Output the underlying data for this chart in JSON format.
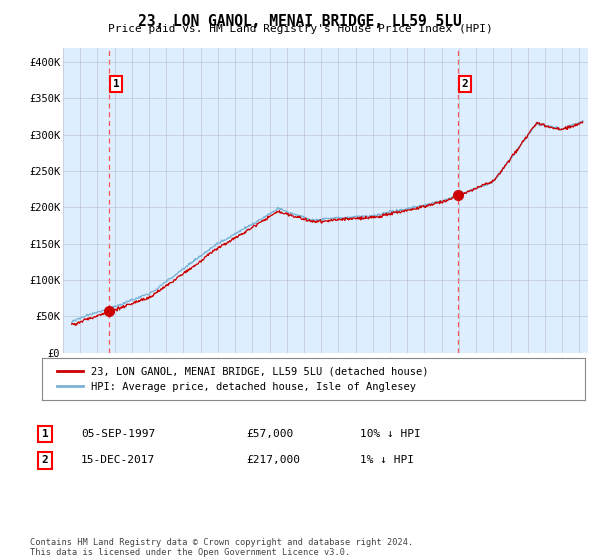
{
  "title": "23, LON GANOL, MENAI BRIDGE, LL59 5LU",
  "subtitle": "Price paid vs. HM Land Registry's House Price Index (HPI)",
  "ylim": [
    0,
    420000
  ],
  "yticks": [
    0,
    50000,
    100000,
    150000,
    200000,
    250000,
    300000,
    350000,
    400000
  ],
  "ytick_labels": [
    "£0",
    "£50K",
    "£100K",
    "£150K",
    "£200K",
    "£250K",
    "£300K",
    "£350K",
    "£400K"
  ],
  "xlim_start": 1995.3,
  "xlim_end": 2025.5,
  "xticks": [
    1995,
    1996,
    1997,
    1998,
    1999,
    2000,
    2001,
    2002,
    2003,
    2004,
    2005,
    2006,
    2007,
    2008,
    2009,
    2010,
    2011,
    2012,
    2013,
    2014,
    2015,
    2016,
    2017,
    2018,
    2019,
    2020,
    2021,
    2022,
    2023,
    2024,
    2025
  ],
  "hpi_color": "#7ab3d4",
  "price_color": "#cc0000",
  "vline_color": "#ff5555",
  "marker_color": "#cc0000",
  "bg_plot_color": "#ddeeff",
  "sale1_x": 1997.68,
  "sale1_y": 57000,
  "sale2_x": 2017.96,
  "sale2_y": 217000,
  "legend_line1": "23, LON GANOL, MENAI BRIDGE, LL59 5LU (detached house)",
  "legend_line2": "HPI: Average price, detached house, Isle of Anglesey",
  "annotation1_date": "05-SEP-1997",
  "annotation1_price": "£57,000",
  "annotation1_hpi": "10% ↓ HPI",
  "annotation2_date": "15-DEC-2017",
  "annotation2_price": "£217,000",
  "annotation2_hpi": "1% ↓ HPI",
  "footer": "Contains HM Land Registry data © Crown copyright and database right 2024.\nThis data is licensed under the Open Government Licence v3.0.",
  "background_color": "#ffffff",
  "grid_color": "#bbbbcc"
}
